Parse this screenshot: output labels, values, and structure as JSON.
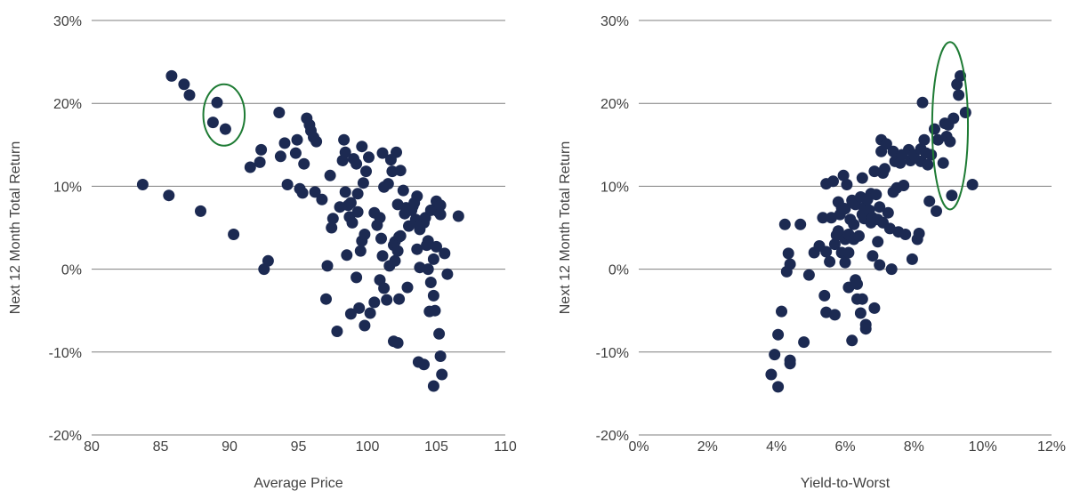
{
  "colors": {
    "point": "#1c2a52",
    "gridline": "#7f7f7f",
    "highlight": "#1e7b34",
    "text": "#404040"
  },
  "chart_data": [
    {
      "type": "scatter",
      "title": "",
      "xlabel": "Average Price",
      "ylabel": "Next 12 Month Total Return",
      "xlim": [
        80,
        110
      ],
      "ylim": [
        -20,
        30
      ],
      "xticks": [
        80,
        85,
        90,
        95,
        100,
        105,
        110
      ],
      "xtick_labels": [
        "80",
        "85",
        "90",
        "95",
        "100",
        "105",
        "110"
      ],
      "yticks": [
        -20,
        -10,
        0,
        10,
        20,
        30
      ],
      "ytick_labels": [
        "-20%",
        "-10%",
        "0%",
        "10%",
        "20%",
        "30%"
      ],
      "grid": "horizontal",
      "highlight_ellipse": {
        "cx": 89.6,
        "cy": 18.6,
        "rx": 1.5,
        "ry": 3.7
      },
      "points": [
        [
          83.7,
          10.2
        ],
        [
          85.6,
          8.9
        ],
        [
          85.8,
          23.3
        ],
        [
          86.7,
          22.3
        ],
        [
          87.1,
          21.0
        ],
        [
          87.9,
          7.0
        ],
        [
          88.8,
          17.7
        ],
        [
          89.1,
          20.1
        ],
        [
          89.7,
          16.9
        ],
        [
          90.3,
          4.2
        ],
        [
          91.5,
          12.3
        ],
        [
          92.2,
          12.9
        ],
        [
          92.3,
          14.4
        ],
        [
          92.5,
          0.0
        ],
        [
          92.8,
          1.0
        ],
        [
          93.6,
          18.9
        ],
        [
          93.7,
          13.6
        ],
        [
          94.0,
          15.2
        ],
        [
          94.2,
          10.2
        ],
        [
          94.8,
          14.0
        ],
        [
          94.9,
          15.6
        ],
        [
          95.1,
          9.7
        ],
        [
          95.3,
          9.2
        ],
        [
          95.4,
          12.7
        ],
        [
          95.6,
          18.2
        ],
        [
          95.8,
          17.4
        ],
        [
          95.9,
          16.7
        ],
        [
          96.1,
          15.9
        ],
        [
          96.3,
          15.4
        ],
        [
          96.2,
          9.3
        ],
        [
          96.7,
          8.4
        ],
        [
          97.1,
          0.4
        ],
        [
          97.0,
          -3.6
        ],
        [
          97.3,
          11.3
        ],
        [
          97.4,
          5.0
        ],
        [
          97.5,
          6.1
        ],
        [
          97.8,
          -7.5
        ],
        [
          98.0,
          7.5
        ],
        [
          98.2,
          13.1
        ],
        [
          98.3,
          15.6
        ],
        [
          98.4,
          14.1
        ],
        [
          98.4,
          9.3
        ],
        [
          98.6,
          7.7
        ],
        [
          98.7,
          6.3
        ],
        [
          98.8,
          8.0
        ],
        [
          98.9,
          5.6
        ],
        [
          98.5,
          1.7
        ],
        [
          98.8,
          -5.4
        ],
        [
          99.0,
          13.3
        ],
        [
          99.2,
          12.7
        ],
        [
          99.3,
          9.1
        ],
        [
          99.3,
          6.9
        ],
        [
          99.2,
          -1.0
        ],
        [
          99.4,
          -4.7
        ],
        [
          99.5,
          2.2
        ],
        [
          99.6,
          3.4
        ],
        [
          99.6,
          14.8
        ],
        [
          99.7,
          10.4
        ],
        [
          99.8,
          4.2
        ],
        [
          99.8,
          -6.8
        ],
        [
          99.9,
          11.8
        ],
        [
          100.1,
          13.5
        ],
        [
          100.2,
          -5.3
        ],
        [
          100.5,
          -4.0
        ],
        [
          100.5,
          6.8
        ],
        [
          100.7,
          5.3
        ],
        [
          100.9,
          -1.3
        ],
        [
          101.0,
          3.7
        ],
        [
          100.9,
          6.2
        ],
        [
          101.1,
          14.0
        ],
        [
          101.1,
          1.6
        ],
        [
          101.2,
          9.9
        ],
        [
          101.2,
          -2.3
        ],
        [
          101.4,
          -3.7
        ],
        [
          101.5,
          10.3
        ],
        [
          101.6,
          0.4
        ],
        [
          101.7,
          13.2
        ],
        [
          101.8,
          11.8
        ],
        [
          101.9,
          2.9
        ],
        [
          102.0,
          3.3
        ],
        [
          101.9,
          -8.7
        ],
        [
          102.0,
          1.0
        ],
        [
          102.1,
          14.1
        ],
        [
          102.2,
          7.8
        ],
        [
          102.2,
          2.2
        ],
        [
          102.3,
          3.9
        ],
        [
          102.3,
          -3.6
        ],
        [
          102.4,
          4.0
        ],
        [
          102.4,
          11.9
        ],
        [
          102.7,
          6.7
        ],
        [
          102.6,
          9.5
        ],
        [
          102.2,
          -8.9
        ],
        [
          102.8,
          7.4
        ],
        [
          102.9,
          -2.2
        ],
        [
          103.0,
          5.2
        ],
        [
          103.2,
          7.1
        ],
        [
          103.3,
          7.6
        ],
        [
          103.4,
          8.0
        ],
        [
          103.5,
          6.0
        ],
        [
          103.6,
          8.8
        ],
        [
          103.6,
          2.4
        ],
        [
          103.8,
          4.8
        ],
        [
          103.8,
          5.2
        ],
        [
          103.8,
          0.2
        ],
        [
          103.7,
          -11.2
        ],
        [
          104.1,
          -11.5
        ],
        [
          104.1,
          5.6
        ],
        [
          104.2,
          6.2
        ],
        [
          104.3,
          2.9
        ],
        [
          104.4,
          0.0
        ],
        [
          104.4,
          3.4
        ],
        [
          104.5,
          -5.1
        ],
        [
          104.6,
          7.1
        ],
        [
          104.6,
          -1.6
        ],
        [
          104.8,
          -3.2
        ],
        [
          104.8,
          1.2
        ],
        [
          104.9,
          -5.0
        ],
        [
          104.8,
          -14.1
        ],
        [
          105.0,
          2.7
        ],
        [
          105.0,
          8.2
        ],
        [
          105.1,
          7.0
        ],
        [
          105.3,
          6.6
        ],
        [
          105.3,
          7.7
        ],
        [
          105.2,
          -7.8
        ],
        [
          105.3,
          -10.5
        ],
        [
          105.4,
          -12.7
        ],
        [
          105.6,
          1.9
        ],
        [
          105.8,
          -0.6
        ],
        [
          106.6,
          6.4
        ]
      ]
    },
    {
      "type": "scatter",
      "title": "",
      "xlabel": "Yield-to-Worst",
      "ylabel": "Next 12 Month Total Return",
      "xlim": [
        0,
        12
      ],
      "ylim": [
        -20,
        30
      ],
      "xticks": [
        0,
        2,
        4,
        6,
        8,
        10,
        12
      ],
      "xtick_labels": [
        "0%",
        "2%",
        "4%",
        "6%",
        "8%",
        "10%",
        "12%"
      ],
      "yticks": [
        -20,
        -10,
        0,
        10,
        20,
        30
      ],
      "ytick_labels": [
        "-20%",
        "-10%",
        "0%",
        "10%",
        "20%",
        "30%"
      ],
      "grid": "horizontal",
      "highlight_ellipse": {
        "cx": 9.05,
        "cy": 17.3,
        "rx": 0.52,
        "ry": 10.1
      },
      "points": [
        [
          3.85,
          -12.7
        ],
        [
          3.95,
          -10.3
        ],
        [
          4.05,
          -7.9
        ],
        [
          4.05,
          -14.2
        ],
        [
          4.15,
          -5.1
        ],
        [
          4.25,
          5.4
        ],
        [
          4.3,
          -0.3
        ],
        [
          4.35,
          1.9
        ],
        [
          4.4,
          -11.4
        ],
        [
          4.4,
          -11.0
        ],
        [
          4.4,
          0.6
        ],
        [
          4.7,
          5.4
        ],
        [
          4.8,
          -8.8
        ],
        [
          4.95,
          -0.7
        ],
        [
          5.1,
          2.0
        ],
        [
          5.25,
          2.8
        ],
        [
          5.35,
          6.2
        ],
        [
          5.4,
          -3.2
        ],
        [
          5.45,
          -5.2
        ],
        [
          5.45,
          2.1
        ],
        [
          5.45,
          10.3
        ],
        [
          5.55,
          0.9
        ],
        [
          5.6,
          6.2
        ],
        [
          5.65,
          10.6
        ],
        [
          5.7,
          3.0
        ],
        [
          5.7,
          -5.5
        ],
        [
          5.75,
          4.1
        ],
        [
          5.8,
          4.6
        ],
        [
          5.8,
          8.1
        ],
        [
          5.85,
          6.6
        ],
        [
          5.9,
          7.4
        ],
        [
          5.9,
          2.0
        ],
        [
          5.95,
          11.3
        ],
        [
          6.0,
          3.6
        ],
        [
          6.0,
          0.8
        ],
        [
          6.0,
          7.3
        ],
        [
          6.05,
          10.2
        ],
        [
          6.1,
          4.2
        ],
        [
          6.1,
          2.0
        ],
        [
          6.1,
          -2.2
        ],
        [
          6.15,
          6.0
        ],
        [
          6.2,
          8.3
        ],
        [
          6.2,
          -8.6
        ],
        [
          6.25,
          5.4
        ],
        [
          6.25,
          3.6
        ],
        [
          6.3,
          7.8
        ],
        [
          6.3,
          -1.3
        ],
        [
          6.35,
          -1.8
        ],
        [
          6.35,
          -3.6
        ],
        [
          6.4,
          4.0
        ],
        [
          6.45,
          -5.3
        ],
        [
          6.45,
          8.7
        ],
        [
          6.5,
          -3.6
        ],
        [
          6.5,
          6.6
        ],
        [
          6.5,
          11.0
        ],
        [
          6.55,
          6.1
        ],
        [
          6.55,
          7.4
        ],
        [
          6.6,
          -6.7
        ],
        [
          6.6,
          -7.2
        ],
        [
          6.65,
          8.4
        ],
        [
          6.7,
          7.1
        ],
        [
          6.75,
          9.1
        ],
        [
          6.75,
          5.6
        ],
        [
          6.8,
          6.2
        ],
        [
          6.8,
          1.6
        ],
        [
          6.85,
          -4.7
        ],
        [
          6.85,
          11.8
        ],
        [
          6.9,
          9.0
        ],
        [
          6.95,
          3.3
        ],
        [
          6.95,
          6.0
        ],
        [
          7.0,
          7.5
        ],
        [
          7.0,
          0.5
        ],
        [
          7.05,
          14.2
        ],
        [
          7.05,
          15.6
        ],
        [
          7.1,
          5.6
        ],
        [
          7.1,
          11.6
        ],
        [
          7.15,
          12.1
        ],
        [
          7.2,
          15.1
        ],
        [
          7.25,
          6.8
        ],
        [
          7.3,
          4.9
        ],
        [
          7.35,
          0.0
        ],
        [
          7.4,
          9.3
        ],
        [
          7.4,
          14.2
        ],
        [
          7.45,
          13.0
        ],
        [
          7.5,
          9.8
        ],
        [
          7.55,
          4.5
        ],
        [
          7.6,
          12.8
        ],
        [
          7.65,
          13.8
        ],
        [
          7.7,
          10.1
        ],
        [
          7.75,
          4.2
        ],
        [
          7.85,
          14.4
        ],
        [
          7.9,
          13.1
        ],
        [
          7.95,
          1.2
        ],
        [
          8.0,
          13.8
        ],
        [
          8.1,
          3.6
        ],
        [
          8.15,
          4.3
        ],
        [
          8.2,
          14.5
        ],
        [
          8.2,
          13.0
        ],
        [
          8.25,
          20.1
        ],
        [
          8.3,
          15.6
        ],
        [
          8.35,
          14.0
        ],
        [
          8.4,
          12.6
        ],
        [
          8.45,
          8.2
        ],
        [
          8.5,
          13.8
        ],
        [
          8.6,
          16.9
        ],
        [
          8.65,
          7.0
        ],
        [
          8.7,
          15.6
        ],
        [
          8.85,
          12.8
        ],
        [
          8.9,
          17.6
        ],
        [
          8.95,
          16.0
        ],
        [
          9.0,
          17.4
        ],
        [
          9.05,
          15.4
        ],
        [
          9.1,
          8.9
        ],
        [
          9.15,
          18.2
        ],
        [
          9.25,
          22.3
        ],
        [
          9.3,
          21.0
        ],
        [
          9.35,
          23.3
        ],
        [
          9.5,
          18.9
        ],
        [
          9.7,
          10.2
        ]
      ]
    }
  ]
}
